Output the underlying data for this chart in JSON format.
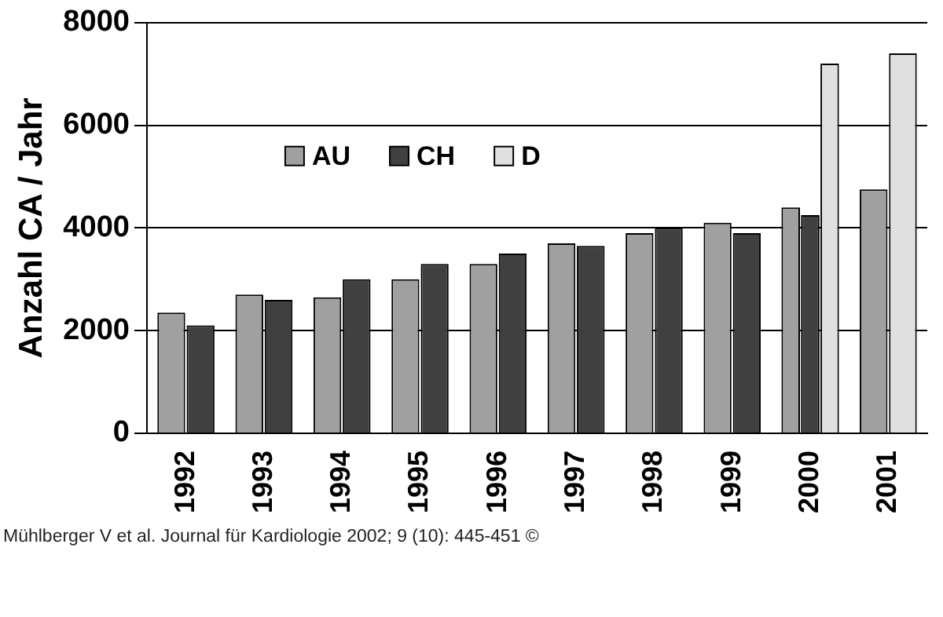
{
  "chart_data": {
    "type": "bar",
    "ylabel": "Anzahl CA / Jahr",
    "categories": [
      "1992",
      "1993",
      "1994",
      "1995",
      "1996",
      "1997",
      "1998",
      "1999",
      "2000",
      "2001"
    ],
    "series": [
      {
        "name": "AU",
        "color": "#a0a0a0",
        "values": [
          2350,
          2700,
          2650,
          3000,
          3300,
          3700,
          3900,
          4100,
          4400,
          4750
        ]
      },
      {
        "name": "CH",
        "color": "#404040",
        "values": [
          2100,
          2600,
          3000,
          3300,
          3500,
          3650,
          4000,
          3900,
          4250,
          null
        ]
      },
      {
        "name": "D",
        "color": "#e0e0e0",
        "values": [
          null,
          null,
          null,
          null,
          null,
          null,
          null,
          null,
          7200,
          7400
        ]
      }
    ],
    "ylim": [
      0,
      8000
    ],
    "yticks": [
      0,
      2000,
      4000,
      6000,
      8000
    ],
    "grid": "y",
    "legend": "top left",
    "annotations": [
      "Mühlberger V et al. Journal für Kardiologie 2002; 9 (10): 445-451 ©"
    ]
  }
}
